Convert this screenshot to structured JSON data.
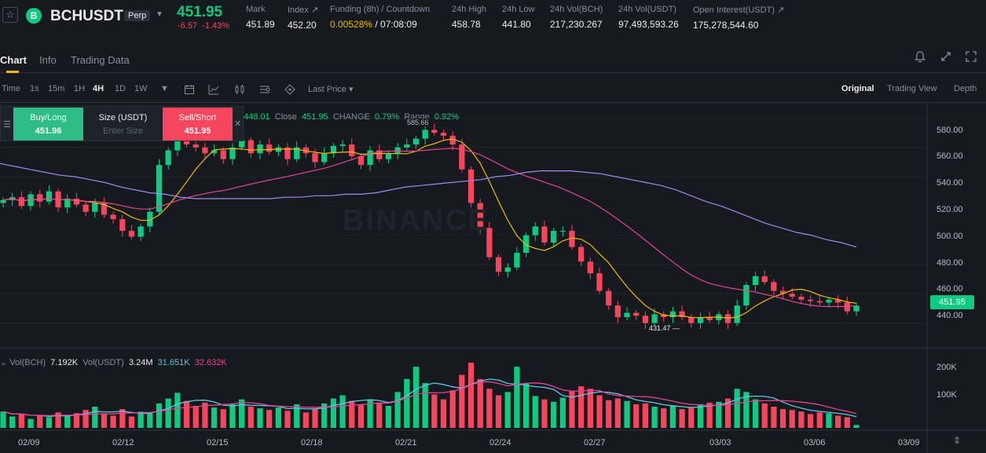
{
  "ticker": {
    "star_icon": "star-icon",
    "coin_icon_glyph": "B",
    "symbol": "BCHUSDT",
    "badge": "Perp",
    "last_price": "451.95",
    "change_abs": "-6.57",
    "change_pct": "-1.43%",
    "stats": [
      {
        "label": "Mark",
        "value": "451.89"
      },
      {
        "label": "Index ↗",
        "value": "452.20"
      },
      {
        "label": "Funding (8h) / Countdown",
        "value_a": "0.00528%",
        "value_b": "/ 07:08:09"
      },
      {
        "label": "24h High",
        "value": "458.78"
      },
      {
        "label": "24h Low",
        "value": "441.80"
      },
      {
        "label": "24h Vol(BCH)",
        "value": "217,230.267"
      },
      {
        "label": "24h Vol(USDT)",
        "value": "97,493,593.26"
      },
      {
        "label": "Open Interest(USDT) ↗",
        "value": "175,278,544.60"
      }
    ]
  },
  "tabs": [
    "Chart",
    "Info",
    "Trading Data"
  ],
  "toolbar": {
    "intervals": [
      "Time",
      "1s",
      "15m",
      "1H",
      "4H",
      "1D",
      "1W"
    ],
    "active_interval": "4H",
    "price_type": "Last Price",
    "views": [
      "Original",
      "Trading View",
      "Depth"
    ],
    "active_view": "Original"
  },
  "order_panel": {
    "buy_label": "Buy/Long",
    "buy_price": "451.96",
    "size_label": "Size (USDT)",
    "size_placeholder": "Enter Size",
    "sell_label": "Sell/Short",
    "sell_price": "451.95"
  },
  "ohlc_legend": {
    "low_val": "448.01",
    "close_label": "Close",
    "close_val": "451.95",
    "change_label": "CHANGE",
    "change_val": "0.79%",
    "range_label": "Range",
    "range_val": "0.92%"
  },
  "volume_legend": {
    "vol_bch_label": "Vol(BCH)",
    "vol_bch": "7.192K",
    "vol_usdt_label": "Vol(USDT)",
    "vol_usdt": "3.24M",
    "ma1": "31.651K",
    "ma2": "32.632K"
  },
  "watermark": "BINANCE",
  "current_price_tag": "451.95",
  "colors": {
    "up": "#0ecb81",
    "down": "#f6465d",
    "ma7": "#f0b90b",
    "ma25": "#e84393",
    "ma99": "#9b8cf2",
    "vol_ma1": "#5cc8e8",
    "vol_ma2": "#e84393"
  },
  "chart_data": {
    "type": "candlestick",
    "x_ticks": [
      "02/09",
      "02/12",
      "02/15",
      "02/18",
      "02/21",
      "02/24",
      "02/27",
      "03/03",
      "03/06",
      "03/09"
    ],
    "y_ticks": [
      "580.00",
      "560.00",
      "540.00",
      "520.00",
      "500.00",
      "480.00",
      "460.00",
      "440.00"
    ],
    "ylim": [
      429,
      591
    ],
    "vol_ticks": [
      "200K",
      "100K"
    ],
    "vol_ylim": [
      0,
      260000
    ],
    "high_marker": "585.66",
    "low_marker": "431.47",
    "close": [
      524,
      526,
      520,
      528,
      523,
      530,
      519,
      525,
      521,
      516,
      522,
      514,
      511,
      503,
      499,
      506,
      516,
      548,
      558,
      566,
      562,
      560,
      556,
      558,
      552,
      560,
      565,
      556,
      562,
      557,
      560,
      552,
      560,
      556,
      550,
      556,
      561,
      562,
      554,
      548,
      558,
      552,
      556,
      560,
      562,
      566,
      572,
      570,
      568,
      562,
      545,
      522,
      505,
      485,
      475,
      478,
      488,
      500,
      506,
      495,
      503,
      503,
      492,
      482,
      474,
      462,
      452,
      444,
      447,
      445,
      440,
      446,
      444,
      448,
      444,
      440,
      444,
      442,
      446,
      440,
      452,
      466,
      472,
      468,
      462,
      460,
      458,
      456,
      455,
      454,
      456,
      454,
      448,
      451.95
    ],
    "ma99": [
      549,
      547,
      545,
      543,
      541,
      540,
      538,
      536,
      533,
      531,
      529,
      528,
      526,
      525,
      525,
      525,
      525,
      525,
      525,
      526,
      526,
      527,
      527,
      528,
      528,
      529,
      531,
      533,
      534,
      535,
      536,
      537,
      538,
      540,
      541,
      543,
      544,
      544,
      544,
      543,
      542,
      540,
      538,
      536,
      534,
      531,
      527,
      523,
      520,
      516,
      512,
      508,
      505,
      502,
      500,
      497,
      495,
      492
    ],
    "volume": [
      40,
      28,
      34,
      22,
      30,
      26,
      38,
      30,
      36,
      44,
      52,
      34,
      30,
      46,
      28,
      40,
      36,
      60,
      72,
      86,
      66,
      54,
      62,
      50,
      46,
      58,
      70,
      52,
      48,
      44,
      50,
      42,
      58,
      38,
      46,
      60,
      72,
      80,
      66,
      58,
      70,
      62,
      54,
      88,
      120,
      150,
      110,
      82,
      70,
      92,
      130,
      160,
      120,
      96,
      80,
      88,
      150,
      110,
      78,
      70,
      64,
      74,
      90,
      102,
      96,
      80,
      68,
      72,
      66,
      58,
      60,
      52,
      48,
      54,
      46,
      50,
      58,
      62,
      64,
      72,
      96,
      88,
      70,
      60,
      52,
      46,
      44,
      40,
      34,
      38,
      36,
      30,
      26,
      7.2
    ],
    "volume_unit": "K"
  }
}
